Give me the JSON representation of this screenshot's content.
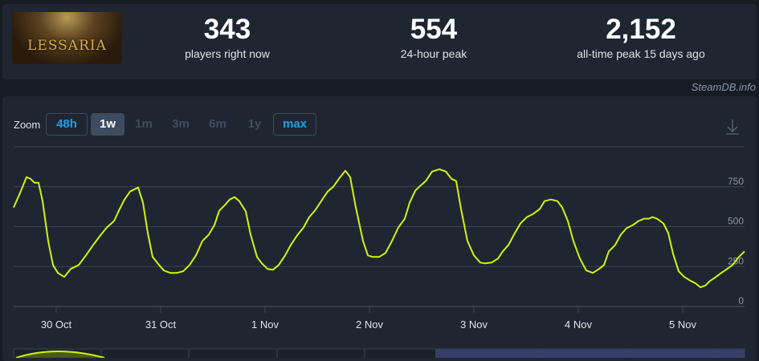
{
  "game": {
    "logo_text": "LESSARIA"
  },
  "stats": [
    {
      "value": "343",
      "label": "players right now"
    },
    {
      "value": "554",
      "label": "24-hour peak"
    },
    {
      "value": "2,152",
      "label": "all-time peak 15 days ago"
    }
  ],
  "credit": "SteamDB.info",
  "zoom": {
    "label": "Zoom",
    "buttons": [
      {
        "label": "48h",
        "state": "link"
      },
      {
        "label": "1w",
        "state": "active"
      },
      {
        "label": "1m",
        "state": "disabled"
      },
      {
        "label": "3m",
        "state": "disabled"
      },
      {
        "label": "6m",
        "state": "disabled"
      },
      {
        "label": "1y",
        "state": "disabled"
      },
      {
        "label": "max",
        "state": "link"
      }
    ],
    "download_icon": "download-icon"
  },
  "colors": {
    "line": "#d4f20c",
    "grid": "#3a4452",
    "selection": "#363f6b"
  },
  "chart_data": {
    "type": "line",
    "x_range": [
      "10-29 14:13",
      "11-05 14:13"
    ],
    "ylim": [
      0,
      1000
    ],
    "y_ticks": [
      0,
      250,
      500,
      750
    ],
    "x_ticks": [
      {
        "t": "10-30 00:00",
        "label": "30 Oct"
      },
      {
        "t": "10-31 00:00",
        "label": "31 Oct"
      },
      {
        "t": "11-01 00:00",
        "label": "1 Nov"
      },
      {
        "t": "11-02 00:00",
        "label": "2 Nov"
      },
      {
        "t": "11-03 00:00",
        "label": "3 Nov"
      },
      {
        "t": "11-04 00:00",
        "label": "4 Nov"
      },
      {
        "t": "11-05 00:00",
        "label": "5 Nov"
      }
    ],
    "grid": true,
    "points": [
      [
        "10-29 14:13",
        620
      ],
      [
        "10-29 15:41",
        710
      ],
      [
        "10-29 17:10",
        810
      ],
      [
        "10-29 18:05",
        800
      ],
      [
        "10-29 19:01",
        775
      ],
      [
        "10-29 19:56",
        775
      ],
      [
        "10-29 20:52",
        660
      ],
      [
        "10-29 22:09",
        410
      ],
      [
        "10-29 23:16",
        260
      ],
      [
        "10-30 00:22",
        210
      ],
      [
        "10-30 01:51",
        185
      ],
      [
        "10-30 03:19",
        235
      ],
      [
        "10-30 05:10",
        260
      ],
      [
        "10-30 06:50",
        320
      ],
      [
        "10-30 08:30",
        385
      ],
      [
        "10-30 10:09",
        445
      ],
      [
        "10-30 11:38",
        495
      ],
      [
        "10-30 13:18",
        535
      ],
      [
        "10-30 14:24",
        600
      ],
      [
        "10-30 15:42",
        670
      ],
      [
        "10-30 16:59",
        720
      ],
      [
        "10-30 18:50",
        745
      ],
      [
        "10-30 19:56",
        650
      ],
      [
        "10-30 21:03",
        460
      ],
      [
        "10-30 22:09",
        310
      ],
      [
        "10-30 23:38",
        260
      ],
      [
        "10-31 00:44",
        225
      ],
      [
        "10-31 02:13",
        210
      ],
      [
        "10-31 03:42",
        210
      ],
      [
        "10-31 05:10",
        220
      ],
      [
        "10-31 06:39",
        260
      ],
      [
        "10-31 08:07",
        320
      ],
      [
        "10-31 09:36",
        410
      ],
      [
        "10-31 11:05",
        450
      ],
      [
        "10-31 12:22",
        510
      ],
      [
        "10-31 13:29",
        600
      ],
      [
        "10-31 14:46",
        635
      ],
      [
        "10-31 15:53",
        670
      ],
      [
        "10-31 16:59",
        685
      ],
      [
        "10-31 18:05",
        660
      ],
      [
        "10-31 19:34",
        595
      ],
      [
        "10-31 20:41",
        450
      ],
      [
        "10-31 22:09",
        310
      ],
      [
        "10-31 23:16",
        270
      ],
      [
        "11-01 00:33",
        235
      ],
      [
        "11-01 01:51",
        230
      ],
      [
        "11-01 03:08",
        260
      ],
      [
        "11-01 04:37",
        320
      ],
      [
        "11-01 05:55",
        385
      ],
      [
        "11-01 07:23",
        445
      ],
      [
        "11-01 08:52",
        495
      ],
      [
        "11-01 10:09",
        560
      ],
      [
        "11-01 11:27",
        600
      ],
      [
        "11-01 12:55",
        660
      ],
      [
        "11-01 14:24",
        720
      ],
      [
        "11-01 15:42",
        750
      ],
      [
        "11-01 16:59",
        800
      ],
      [
        "11-01 18:28",
        850
      ],
      [
        "11-01 19:34",
        810
      ],
      [
        "11-01 20:52",
        620
      ],
      [
        "11-01 22:31",
        410
      ],
      [
        "11-01 23:38",
        320
      ],
      [
        "11-02 00:44",
        310
      ],
      [
        "11-02 02:13",
        310
      ],
      [
        "11-02 03:42",
        335
      ],
      [
        "11-02 05:10",
        410
      ],
      [
        "11-02 06:39",
        495
      ],
      [
        "11-02 08:07",
        550
      ],
      [
        "11-02 09:14",
        650
      ],
      [
        "11-02 10:31",
        725
      ],
      [
        "11-02 11:27",
        750
      ],
      [
        "11-02 12:55",
        785
      ],
      [
        "11-02 14:24",
        845
      ],
      [
        "11-02 16:04",
        860
      ],
      [
        "11-02 17:32",
        845
      ],
      [
        "11-02 18:50",
        800
      ],
      [
        "11-02 19:56",
        785
      ],
      [
        "11-02 21:03",
        610
      ],
      [
        "11-02 22:31",
        410
      ],
      [
        "11-03 00:00",
        320
      ],
      [
        "11-03 01:29",
        275
      ],
      [
        "11-03 02:35",
        270
      ],
      [
        "11-03 04:04",
        275
      ],
      [
        "11-03 05:32",
        300
      ],
      [
        "11-03 06:39",
        345
      ],
      [
        "11-03 07:56",
        385
      ],
      [
        "11-03 09:14",
        450
      ],
      [
        "11-03 10:43",
        520
      ],
      [
        "11-03 12:11",
        560
      ],
      [
        "11-03 13:40",
        580
      ],
      [
        "11-03 15:08",
        610
      ],
      [
        "11-03 16:15",
        660
      ],
      [
        "11-03 17:43",
        670
      ],
      [
        "11-03 19:12",
        660
      ],
      [
        "11-03 20:18",
        620
      ],
      [
        "11-03 21:36",
        535
      ],
      [
        "11-03 22:53",
        410
      ],
      [
        "11-04 00:22",
        300
      ],
      [
        "11-04 01:51",
        225
      ],
      [
        "11-04 03:19",
        210
      ],
      [
        "11-04 04:48",
        235
      ],
      [
        "11-04 05:55",
        260
      ],
      [
        "11-04 07:01",
        345
      ],
      [
        "11-04 08:29",
        385
      ],
      [
        "11-04 09:47",
        450
      ],
      [
        "11-04 11:05",
        490
      ],
      [
        "11-04 12:33",
        510
      ],
      [
        "11-04 13:51",
        535
      ],
      [
        "11-04 15:08",
        550
      ],
      [
        "11-04 16:15",
        550
      ],
      [
        "11-04 16:59",
        560
      ],
      [
        "11-04 18:05",
        550
      ],
      [
        "11-04 19:34",
        520
      ],
      [
        "11-04 20:41",
        460
      ],
      [
        "11-04 21:47",
        330
      ],
      [
        "11-04 23:05",
        220
      ],
      [
        "11-05 00:22",
        185
      ],
      [
        "11-05 01:51",
        160
      ],
      [
        "11-05 02:57",
        145
      ],
      [
        "11-05 04:04",
        120
      ],
      [
        "11-05 05:10",
        130
      ],
      [
        "11-05 06:17",
        160
      ],
      [
        "11-05 07:23",
        180
      ],
      [
        "11-05 08:52",
        210
      ],
      [
        "11-05 09:58",
        230
      ],
      [
        "11-05 11:27",
        260
      ],
      [
        "11-05 12:55",
        310
      ],
      [
        "11-05 14:13",
        345
      ]
    ]
  }
}
